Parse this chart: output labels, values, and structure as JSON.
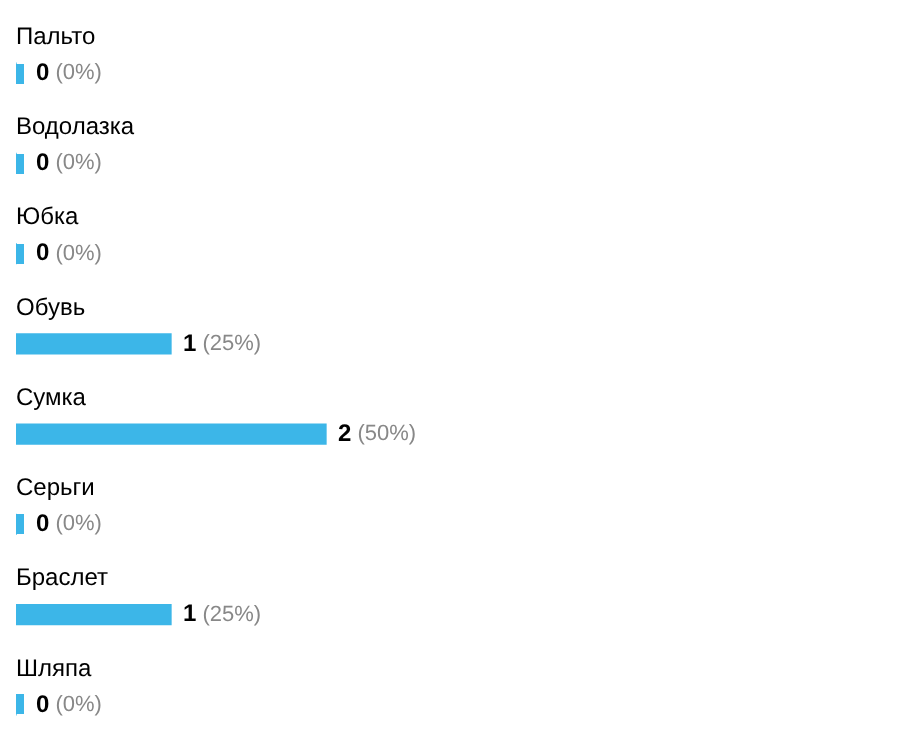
{
  "chart_data": {
    "type": "bar",
    "orientation": "horizontal",
    "categories": [
      "Пальто",
      "Водолазка",
      "Юбка",
      "Обувь",
      "Сумка",
      "Серьги",
      "Браслет",
      "Шляпа"
    ],
    "values": [
      0,
      0,
      0,
      1,
      2,
      0,
      1,
      0
    ],
    "color": "#3cb6e8",
    "value_labels": [
      "0 (0%)",
      "0 (0%)",
      "0 (0%)",
      "1 (25%)",
      "2 (50%)",
      "0 (0%)",
      "1 (25%)",
      "0 (0%)"
    ]
  }
}
